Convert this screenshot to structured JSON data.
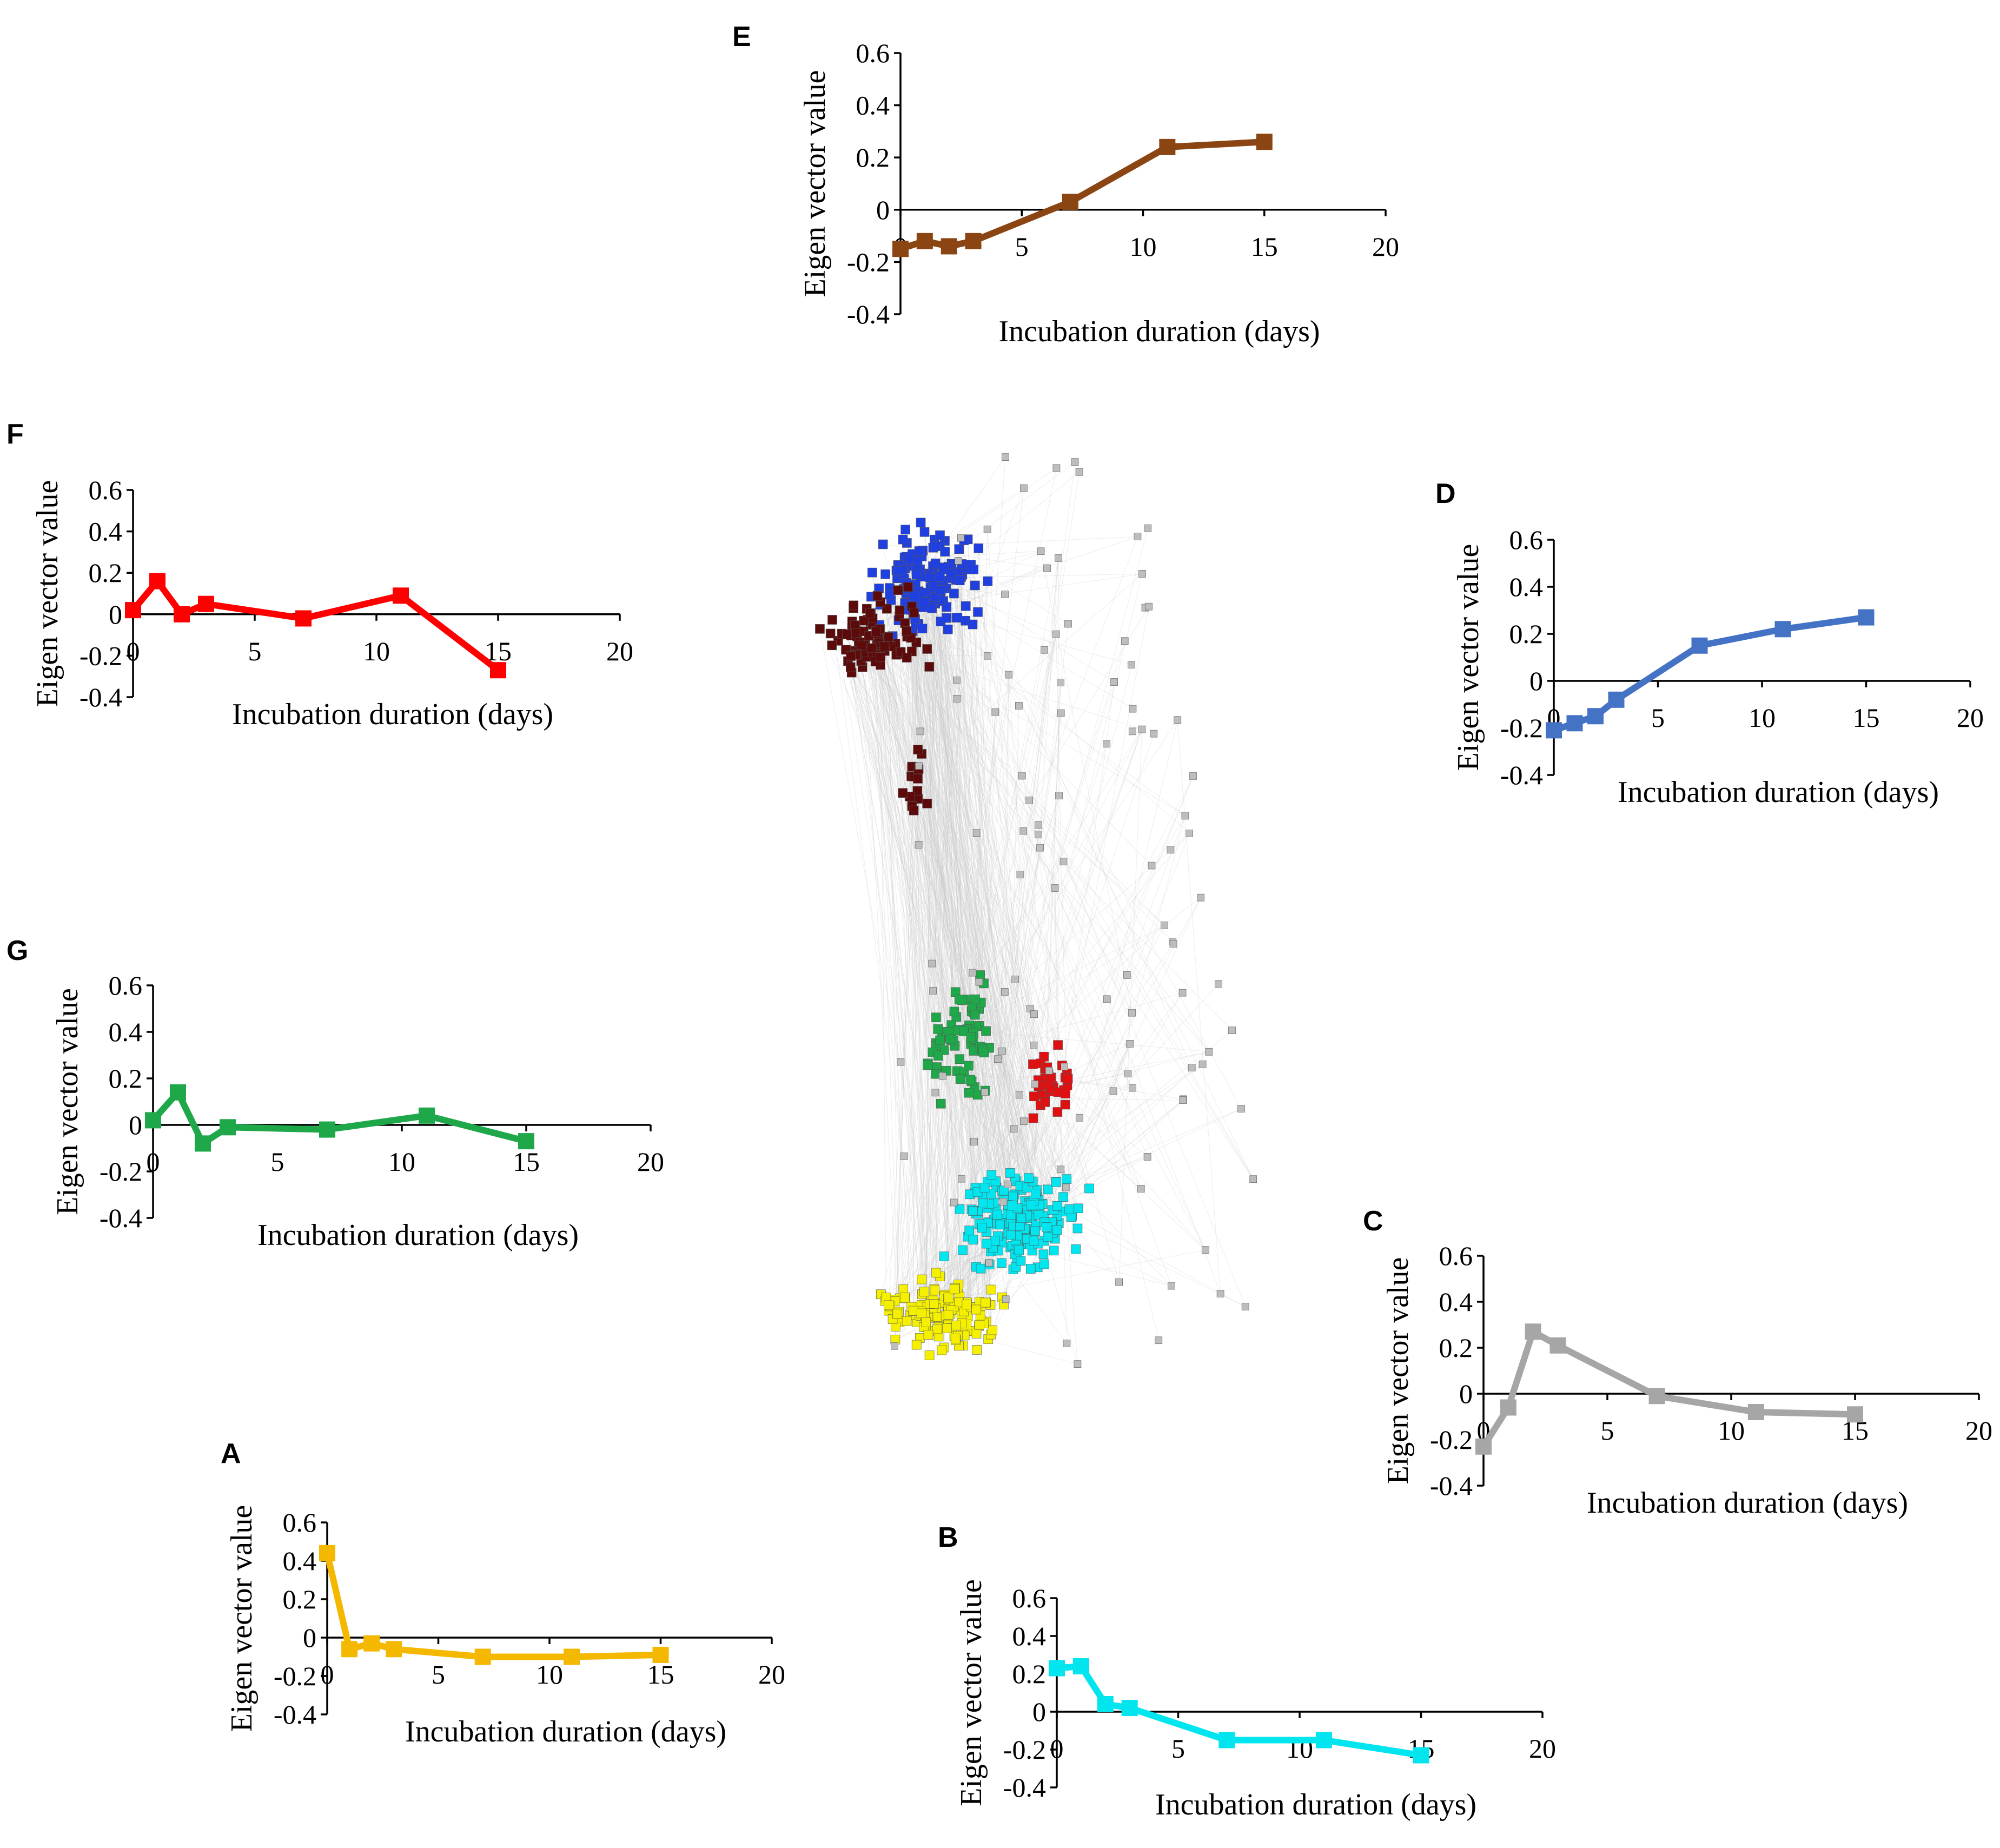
{
  "chart_data": [
    {
      "panel": "A",
      "type": "line",
      "color": "#F5B800",
      "title": "",
      "xlabel": "Incubation duration (days)",
      "ylabel": "Eigen vector value",
      "xlim": [
        0,
        20
      ],
      "ylim": [
        -0.4,
        0.6
      ],
      "xticks": [
        "0",
        "5",
        "10",
        "15",
        "20"
      ],
      "yticks": [
        "0.6",
        "0.4",
        "0.2",
        "0",
        "-0.2",
        "-0.4"
      ],
      "x": [
        0,
        1,
        2,
        3,
        7,
        11,
        15
      ],
      "y": [
        0.44,
        -0.06,
        -0.03,
        -0.06,
        -0.1,
        -0.1,
        -0.09
      ]
    },
    {
      "panel": "B",
      "type": "line",
      "color": "#00E5EE",
      "title": "",
      "xlabel": "Incubation duration (days)",
      "ylabel": "Eigen vector value",
      "xlim": [
        0,
        20
      ],
      "ylim": [
        -0.4,
        0.6
      ],
      "xticks": [
        "0",
        "5",
        "10",
        "15",
        "20"
      ],
      "yticks": [
        "0.6",
        "0.4",
        "0.2",
        "0",
        "-0.2",
        "-0.4"
      ],
      "x": [
        0,
        1,
        2,
        3,
        7,
        11,
        15
      ],
      "y": [
        0.23,
        0.24,
        0.04,
        0.02,
        -0.15,
        -0.15,
        -0.23
      ]
    },
    {
      "panel": "C",
      "type": "line",
      "color": "#A6A6A6",
      "title": "",
      "xlabel": "Incubation duration (days)",
      "ylabel": "Eigen vector value",
      "xlim": [
        0,
        20
      ],
      "ylim": [
        -0.4,
        0.6
      ],
      "xticks": [
        "0",
        "5",
        "10",
        "15",
        "20"
      ],
      "yticks": [
        "0.6",
        "0.4",
        "0.2",
        "0",
        "-0.2",
        "-0.4"
      ],
      "x": [
        0,
        1,
        2,
        3,
        7,
        11,
        15
      ],
      "y": [
        -0.23,
        -0.06,
        0.27,
        0.21,
        -0.01,
        -0.08,
        -0.09
      ]
    },
    {
      "panel": "D",
      "type": "line",
      "color": "#4472C4",
      "title": "",
      "xlabel": "Incubation duration (days)",
      "ylabel": "Eigen vector value",
      "xlim": [
        0,
        20
      ],
      "ylim": [
        -0.4,
        0.6
      ],
      "xticks": [
        "0",
        "5",
        "10",
        "15",
        "20"
      ],
      "yticks": [
        "0.6",
        "0.4",
        "0.2",
        "0",
        "-0.2",
        "-0.4"
      ],
      "x": [
        0,
        1,
        2,
        3,
        7,
        11,
        15
      ],
      "y": [
        -0.21,
        -0.18,
        -0.15,
        -0.08,
        0.15,
        0.22,
        0.27
      ]
    },
    {
      "panel": "E",
      "type": "line",
      "color": "#8B4513",
      "title": "",
      "xlabel": "Incubation duration (days)",
      "ylabel": "Eigen vector value",
      "xlim": [
        0,
        20
      ],
      "ylim": [
        -0.4,
        0.6
      ],
      "xticks": [
        "0",
        "5",
        "10",
        "15",
        "20"
      ],
      "yticks": [
        "0.6",
        "0.4",
        "0.2",
        "0",
        "-0.2",
        "-0.4"
      ],
      "x": [
        0,
        1,
        2,
        3,
        7,
        11,
        15
      ],
      "y": [
        -0.15,
        -0.12,
        -0.14,
        -0.12,
        0.03,
        0.24,
        0.26
      ]
    },
    {
      "panel": "F",
      "type": "line",
      "color": "#FF0000",
      "title": "",
      "xlabel": "Incubation duration (days)",
      "ylabel": "Eigen vector value",
      "xlim": [
        0,
        20
      ],
      "ylim": [
        -0.4,
        0.6
      ],
      "xticks": [
        "0",
        "5",
        "10",
        "15",
        "20"
      ],
      "yticks": [
        "0.6",
        "0.4",
        "0.2",
        "0",
        "-0.2",
        "-0.4"
      ],
      "x": [
        0,
        1,
        2,
        3,
        7,
        11,
        15
      ],
      "y": [
        0.02,
        0.16,
        0.0,
        0.05,
        -0.02,
        0.09,
        -0.27
      ]
    },
    {
      "panel": "G",
      "type": "line",
      "color": "#1FA84A",
      "title": "",
      "xlabel": "Incubation duration (days)",
      "ylabel": "Eigen vector value",
      "xlim": [
        0,
        20
      ],
      "ylim": [
        -0.4,
        0.6
      ],
      "xticks": [
        "0",
        "5",
        "10",
        "15",
        "20"
      ],
      "yticks": [
        "0.6",
        "0.4",
        "0.2",
        "0",
        "-0.2",
        "-0.4"
      ],
      "x": [
        0,
        1,
        2,
        3,
        7,
        11,
        15
      ],
      "y": [
        0.02,
        0.14,
        -0.08,
        -0.01,
        -0.02,
        0.04,
        -0.07
      ]
    }
  ],
  "network": {
    "description_type": "co-expression network",
    "module_colors": {
      "blue": "#1F3FE0",
      "brown": "#5C0A0A",
      "red": "#E01010",
      "green": "#1FA84A",
      "cyan": "#00E5EE",
      "yellow": "#F5F000",
      "grey": "#BDBDBD"
    }
  }
}
